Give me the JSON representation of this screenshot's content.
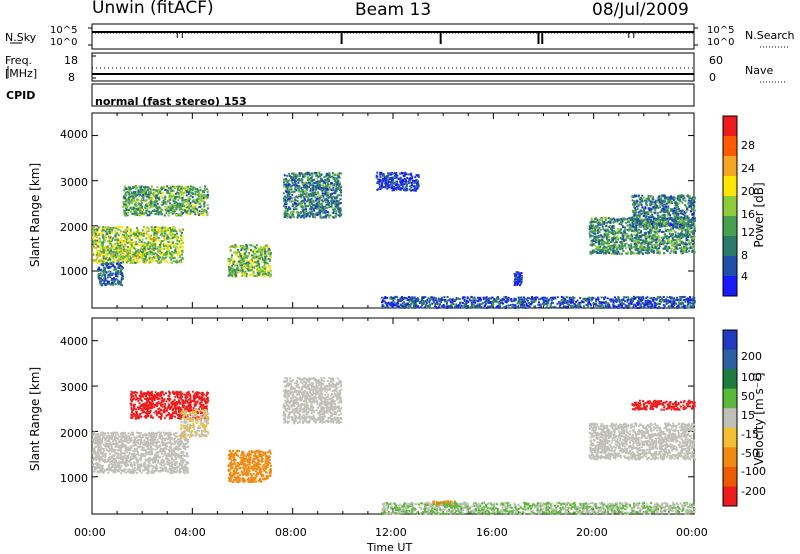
{
  "header": {
    "station": "Unwin (fitACF)",
    "beam": "Beam 13",
    "date": "08/Jul/2009"
  },
  "noise_panel": {
    "left_label": "N.Sky",
    "left_ticks": [
      "10^5",
      "10^0"
    ],
    "right_label": "N.Search",
    "right_ticks": [
      "10^5",
      "10^0"
    ]
  },
  "freq_panel": {
    "left_label_1": "Freq.",
    "left_label_2": "[MHz]",
    "left_ticks": [
      "18",
      "8"
    ],
    "right_label": "Nave",
    "right_ticks": [
      "60",
      "0"
    ]
  },
  "cpid": {
    "label": "CPID",
    "mode": "normal (fast stereo) 153"
  },
  "x_axis": {
    "label": "Time UT",
    "ticks": [
      "00:00",
      "04:00",
      "08:00",
      "12:00",
      "16:00",
      "20:00",
      "00:00"
    ]
  },
  "power_panel": {
    "ylabel": "Slant Range [km]",
    "y_ticks": [
      "4000",
      "3000",
      "2000",
      "1000"
    ],
    "colorbar_label": "Power [dB]",
    "colorbar_ticks": [
      "28",
      "24",
      "20",
      "16",
      "12",
      "8",
      "4"
    ]
  },
  "velocity_panel": {
    "ylabel": "Slant Range [km]",
    "y_ticks": [
      "4000",
      "3000",
      "2000",
      "1000"
    ],
    "colorbar_label": "Velocity [m s⁻¹]",
    "colorbar_ticks": [
      "200",
      "100",
      "50",
      "15",
      "-15",
      "-50",
      "-100",
      "-200"
    ]
  },
  "colors": {
    "power_scale": [
      "#1a1aff",
      "#1f4fa8",
      "#2a7a6a",
      "#46a050",
      "#8ecb3a",
      "#ffe600",
      "#f5a623",
      "#ff5a00",
      "#ee1c1c"
    ],
    "velocity_scale": [
      "#1f3cc0",
      "#2a5fa0",
      "#1e7a3a",
      "#5ab83a",
      "#c0c0b8",
      "#f2c030",
      "#f08a10",
      "#ee5a00",
      "#ee1c1c"
    ]
  },
  "chart_data": {
    "type": "heatmap",
    "x_unit": "hours UT",
    "x_range": [
      0,
      24
    ],
    "y_unit": "km",
    "y_range": [
      180,
      4500
    ],
    "power_regions": [
      {
        "t": [
          0.0,
          3.6
        ],
        "r": [
          1200,
          2000
        ],
        "db": 20
      },
      {
        "t": [
          1.2,
          4.6
        ],
        "r": [
          2250,
          2900
        ],
        "db": 16
      },
      {
        "t": [
          0.2,
          1.2
        ],
        "r": [
          700,
          1200
        ],
        "db": 10
      },
      {
        "t": [
          5.4,
          7.1
        ],
        "r": [
          900,
          1600
        ],
        "db": 18
      },
      {
        "t": [
          7.6,
          9.9
        ],
        "r": [
          2200,
          3200
        ],
        "db": 12
      },
      {
        "t": [
          11.3,
          13.0
        ],
        "r": [
          2800,
          3200
        ],
        "db": 6
      },
      {
        "t": [
          16.8,
          17.1
        ],
        "r": [
          700,
          1000
        ],
        "db": 6
      },
      {
        "t": [
          19.8,
          24.0
        ],
        "r": [
          1400,
          2200
        ],
        "db": 14
      },
      {
        "t": [
          21.5,
          24.0
        ],
        "r": [
          2000,
          2700
        ],
        "db": 12
      },
      {
        "t": [
          11.5,
          24.0
        ],
        "r": [
          200,
          450
        ],
        "db": 8
      }
    ],
    "velocity_regions": [
      {
        "t": [
          0.0,
          3.8
        ],
        "r": [
          1100,
          2000
        ],
        "v": 0
      },
      {
        "t": [
          1.5,
          4.6
        ],
        "r": [
          2300,
          2900
        ],
        "v": -200
      },
      {
        "t": [
          3.5,
          4.6
        ],
        "r": [
          1900,
          2500
        ],
        "v": -15
      },
      {
        "t": [
          5.4,
          7.1
        ],
        "r": [
          900,
          1600
        ],
        "v": -50
      },
      {
        "t": [
          7.6,
          9.9
        ],
        "r": [
          2200,
          3200
        ],
        "v": 0
      },
      {
        "t": [
          13.3,
          14.5
        ],
        "r": [
          380,
          480
        ],
        "v": -50
      },
      {
        "t": [
          19.8,
          24.0
        ],
        "r": [
          1400,
          2200
        ],
        "v": 0
      },
      {
        "t": [
          21.5,
          24.0
        ],
        "r": [
          2500,
          2700
        ],
        "v": -200
      },
      {
        "t": [
          11.5,
          24.0
        ],
        "r": [
          200,
          450
        ],
        "v": 15
      }
    ]
  }
}
